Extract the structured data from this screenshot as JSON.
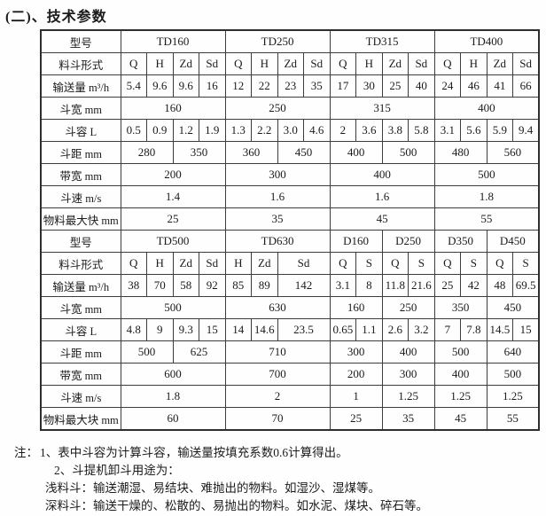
{
  "page": {
    "title": "(二)、技术参数"
  },
  "colors": {
    "background": "#fefefe",
    "text": "#1b1b1b",
    "table_border": "#3d3d3d"
  },
  "table": {
    "sections": [
      {
        "rows": [
          {
            "cells": [
              {
                "t": "型号"
              },
              {
                "t": "TD160",
                "cs": 4
              },
              {
                "t": "TD250",
                "cs": 4
              },
              {
                "t": "TD315",
                "cs": 4
              },
              {
                "t": "TD400",
                "cs": 4
              }
            ]
          },
          {
            "cells": [
              {
                "t": "料斗形式"
              },
              {
                "t": "Q"
              },
              {
                "t": "H"
              },
              {
                "t": "Zd"
              },
              {
                "t": "Sd"
              },
              {
                "t": "Q"
              },
              {
                "t": "H"
              },
              {
                "t": "Zd"
              },
              {
                "t": "Sd"
              },
              {
                "t": "Q"
              },
              {
                "t": "H"
              },
              {
                "t": "Zd"
              },
              {
                "t": "Sd"
              },
              {
                "t": "Q"
              },
              {
                "t": "H"
              },
              {
                "t": "Zd"
              },
              {
                "t": "Sd"
              }
            ]
          },
          {
            "cells": [
              {
                "t": "输送量 m³/h"
              },
              {
                "t": "5.4"
              },
              {
                "t": "9.6"
              },
              {
                "t": "9.6"
              },
              {
                "t": "16"
              },
              {
                "t": "12"
              },
              {
                "t": "22"
              },
              {
                "t": "23"
              },
              {
                "t": "35"
              },
              {
                "t": "17"
              },
              {
                "t": "30"
              },
              {
                "t": "25"
              },
              {
                "t": "40"
              },
              {
                "t": "24"
              },
              {
                "t": "46"
              },
              {
                "t": "41"
              },
              {
                "t": "66"
              }
            ]
          },
          {
            "cells": [
              {
                "t": "斗宽 mm"
              },
              {
                "t": "160",
                "cs": 4
              },
              {
                "t": "250",
                "cs": 4
              },
              {
                "t": "315",
                "cs": 4
              },
              {
                "t": "400",
                "cs": 4
              }
            ]
          },
          {
            "cells": [
              {
                "t": "斗容 L"
              },
              {
                "t": "0.5"
              },
              {
                "t": "0.9"
              },
              {
                "t": "1.2"
              },
              {
                "t": "1.9"
              },
              {
                "t": "1.3"
              },
              {
                "t": "2.2"
              },
              {
                "t": "3.0"
              },
              {
                "t": "4.6"
              },
              {
                "t": "2"
              },
              {
                "t": "3.6"
              },
              {
                "t": "3.8"
              },
              {
                "t": "5.8"
              },
              {
                "t": "3.1"
              },
              {
                "t": "5.6"
              },
              {
                "t": "5.9"
              },
              {
                "t": "9.4"
              }
            ]
          },
          {
            "cells": [
              {
                "t": "斗距 mm"
              },
              {
                "t": "280",
                "cs": 2
              },
              {
                "t": "350",
                "cs": 2
              },
              {
                "t": "360",
                "cs": 2
              },
              {
                "t": "450",
                "cs": 2
              },
              {
                "t": "400",
                "cs": 2
              },
              {
                "t": "500",
                "cs": 2
              },
              {
                "t": "480",
                "cs": 2
              },
              {
                "t": "560",
                "cs": 2
              }
            ]
          },
          {
            "cells": [
              {
                "t": "带宽 mm"
              },
              {
                "t": "200",
                "cs": 4
              },
              {
                "t": "300",
                "cs": 4
              },
              {
                "t": "400",
                "cs": 4
              },
              {
                "t": "500",
                "cs": 4
              }
            ]
          },
          {
            "cells": [
              {
                "t": "斗速 m/s"
              },
              {
                "t": "1.4",
                "cs": 4
              },
              {
                "t": "1.6",
                "cs": 4
              },
              {
                "t": "1.6",
                "cs": 4
              },
              {
                "t": "1.8",
                "cs": 4
              }
            ]
          },
          {
            "cells": [
              {
                "t": "物料最大快 mm"
              },
              {
                "t": "25",
                "cs": 4
              },
              {
                "t": "35",
                "cs": 4
              },
              {
                "t": "45",
                "cs": 4
              },
              {
                "t": "55",
                "cs": 4
              }
            ]
          }
        ]
      },
      {
        "rows": [
          {
            "cells": [
              {
                "t": "型号"
              },
              {
                "t": "TD500",
                "cs": 4
              },
              {
                "t": "TD630",
                "cs": 4
              },
              {
                "t": "D160",
                "cs": 2
              },
              {
                "t": "D250",
                "cs": 2
              },
              {
                "t": "D350",
                "cs": 2
              },
              {
                "t": "D450",
                "cs": 2
              }
            ]
          },
          {
            "cells": [
              {
                "t": "料斗形式"
              },
              {
                "t": "Q"
              },
              {
                "t": "H"
              },
              {
                "t": "Zd"
              },
              {
                "t": "Sd"
              },
              {
                "t": "H"
              },
              {
                "t": "Zd"
              },
              {
                "t": "Sd",
                "cs": 2
              },
              {
                "t": "Q"
              },
              {
                "t": "S"
              },
              {
                "t": "Q"
              },
              {
                "t": "S"
              },
              {
                "t": "Q"
              },
              {
                "t": "S"
              },
              {
                "t": "Q"
              },
              {
                "t": "S"
              }
            ]
          },
          {
            "cells": [
              {
                "t": "输送量 m³/h"
              },
              {
                "t": "38"
              },
              {
                "t": "70"
              },
              {
                "t": "58"
              },
              {
                "t": "92"
              },
              {
                "t": "85"
              },
              {
                "t": "89"
              },
              {
                "t": "142",
                "cs": 2
              },
              {
                "t": "3.1"
              },
              {
                "t": "8"
              },
              {
                "t": "11.8"
              },
              {
                "t": "21.6"
              },
              {
                "t": "25"
              },
              {
                "t": "42"
              },
              {
                "t": "48"
              },
              {
                "t": "69.5"
              }
            ]
          },
          {
            "cells": [
              {
                "t": "斗宽 mm"
              },
              {
                "t": "500",
                "cs": 4
              },
              {
                "t": "630",
                "cs": 4
              },
              {
                "t": "160",
                "cs": 2
              },
              {
                "t": "250",
                "cs": 2
              },
              {
                "t": "350",
                "cs": 2
              },
              {
                "t": "450",
                "cs": 2
              }
            ]
          },
          {
            "cells": [
              {
                "t": "斗容 L"
              },
              {
                "t": "4.8"
              },
              {
                "t": "9"
              },
              {
                "t": "9.3"
              },
              {
                "t": "15"
              },
              {
                "t": "14"
              },
              {
                "t": "14.6"
              },
              {
                "t": "23.5",
                "cs": 2
              },
              {
                "t": "0.65"
              },
              {
                "t": "1.1"
              },
              {
                "t": "2.6"
              },
              {
                "t": "3.2"
              },
              {
                "t": "7"
              },
              {
                "t": "7.8"
              },
              {
                "t": "14.5"
              },
              {
                "t": "15"
              }
            ]
          },
          {
            "cells": [
              {
                "t": "斗距 mm"
              },
              {
                "t": "500",
                "cs": 2
              },
              {
                "t": "625",
                "cs": 2
              },
              {
                "t": "710",
                "cs": 4
              },
              {
                "t": "300",
                "cs": 2
              },
              {
                "t": "400",
                "cs": 2
              },
              {
                "t": "500",
                "cs": 2
              },
              {
                "t": "640",
                "cs": 2
              }
            ]
          },
          {
            "cells": [
              {
                "t": "带宽 mm"
              },
              {
                "t": "600",
                "cs": 4
              },
              {
                "t": "700",
                "cs": 4
              },
              {
                "t": "200",
                "cs": 2
              },
              {
                "t": "300",
                "cs": 2
              },
              {
                "t": "400",
                "cs": 2
              },
              {
                "t": "500",
                "cs": 2
              }
            ]
          },
          {
            "cells": [
              {
                "t": "斗速 m/s"
              },
              {
                "t": "1.8",
                "cs": 4
              },
              {
                "t": "2",
                "cs": 4
              },
              {
                "t": "1",
                "cs": 2
              },
              {
                "t": "1.25",
                "cs": 2
              },
              {
                "t": "1.25",
                "cs": 2
              },
              {
                "t": "1.25",
                "cs": 2
              }
            ]
          },
          {
            "cells": [
              {
                "t": "物料最大块 mm"
              },
              {
                "t": "60",
                "cs": 4
              },
              {
                "t": "70",
                "cs": 4
              },
              {
                "t": "25",
                "cs": 2
              },
              {
                "t": "35",
                "cs": 2
              },
              {
                "t": "45",
                "cs": 2
              },
              {
                "t": "55",
                "cs": 2
              }
            ]
          }
        ]
      }
    ]
  },
  "notes": {
    "prefix": "注：",
    "lines": [
      "1、表中斗容为计算斗容，输送量按填充系数0.6计算得出。",
      "2、斗提机卸斗用途为：",
      "浅料斗：输送潮湿、易结块、难抛出的物料。如湿沙、湿煤等。",
      "深料斗：输送干燥的、松散的、易抛出的物料。如水泥、煤块、碎石等。"
    ]
  }
}
